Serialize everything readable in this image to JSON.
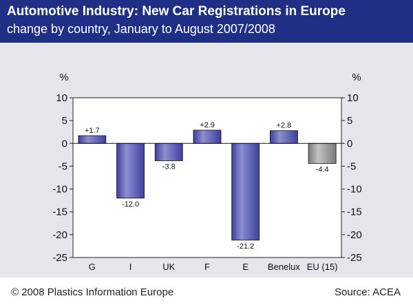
{
  "header": {
    "title": "Automotive Industry: New Car Registrations in Europe",
    "subtitle": "change by country, January to August 2007/2008"
  },
  "footer": {
    "copyright": "© 2008 Plastics Information Europe",
    "source": "Source: ACEA"
  },
  "colors": {
    "header_bg": "#1f2f86",
    "panel_bg": "#e5e6ec",
    "bar": "#3d3f9e",
    "bar_highlight": "#8d8fcf",
    "bar_eu": "#7a7a7a",
    "bar_eu_highlight": "#c4c4c4"
  },
  "chart_data": {
    "type": "bar",
    "categories": [
      "G",
      "I",
      "UK",
      "F",
      "E",
      "Benelux",
      "EU (15)"
    ],
    "values": [
      1.7,
      -12.0,
      -3.8,
      2.9,
      -21.2,
      2.8,
      -4.4
    ],
    "value_labels": [
      "+1.7",
      "-12.0",
      "-3.8",
      "+2.9",
      "-21.2",
      "+2.8",
      "-4.4"
    ],
    "ylabel_left": "%",
    "ylabel_right": "%",
    "ylim": [
      -25,
      10
    ],
    "yticks": [
      10,
      5,
      0,
      -5,
      -10,
      -15,
      -20,
      -25
    ],
    "ytick_labels": [
      "10",
      "5",
      "0",
      "-5",
      "-10",
      "-15",
      "-20",
      "-25"
    ],
    "grid": false
  }
}
